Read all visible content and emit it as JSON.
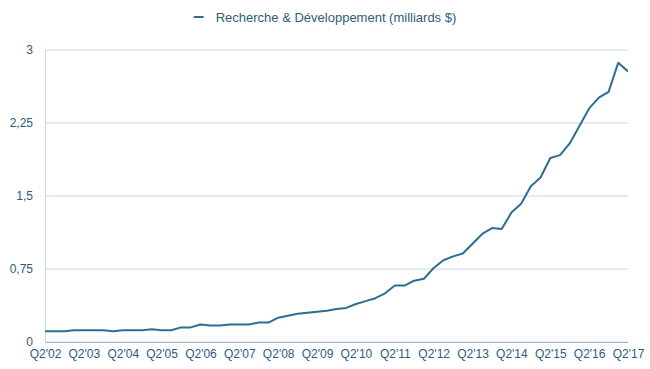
{
  "chart_data": {
    "type": "line",
    "categories": [
      "Q2'02",
      null,
      null,
      null,
      "Q2'03",
      null,
      null,
      null,
      "Q2'04",
      null,
      null,
      null,
      "Q2'05",
      null,
      null,
      null,
      "Q2'06",
      null,
      null,
      null,
      "Q2'07",
      null,
      null,
      null,
      "Q2'08",
      null,
      null,
      null,
      "Q2'09",
      null,
      null,
      null,
      "Q2'10",
      null,
      null,
      null,
      "Q2'11",
      null,
      null,
      null,
      "Q2'12",
      null,
      null,
      null,
      "Q2'13",
      null,
      null,
      null,
      "Q2'14",
      null,
      null,
      null,
      "Q2'15",
      null,
      null,
      null,
      "Q2'16",
      null,
      null,
      null,
      "Q2'17"
    ],
    "series": [
      {
        "name": "Recherche & Développement (milliards $)",
        "color": "#2b6f94",
        "values": [
          0.11,
          0.11,
          0.11,
          0.12,
          0.12,
          0.12,
          0.12,
          0.11,
          0.12,
          0.12,
          0.12,
          0.13,
          0.12,
          0.12,
          0.15,
          0.15,
          0.18,
          0.17,
          0.17,
          0.18,
          0.18,
          0.18,
          0.2,
          0.2,
          0.25,
          0.27,
          0.29,
          0.3,
          0.31,
          0.32,
          0.34,
          0.35,
          0.39,
          0.42,
          0.45,
          0.5,
          0.58,
          0.58,
          0.63,
          0.65,
          0.76,
          0.84,
          0.88,
          0.91,
          1.01,
          1.11,
          1.17,
          1.16,
          1.33,
          1.42,
          1.6,
          1.69,
          1.89,
          1.92,
          2.04,
          2.22,
          2.4,
          2.51,
          2.57,
          2.87,
          2.78
        ]
      }
    ],
    "ylim": [
      0,
      3
    ],
    "yticks": [
      0,
      {
        "value": 0.75,
        "label": "0,75"
      },
      {
        "value": 1.5,
        "label": "1,5"
      },
      {
        "value": 2.25,
        "label": "2,25"
      },
      3
    ],
    "grid": true,
    "legend": "top"
  }
}
